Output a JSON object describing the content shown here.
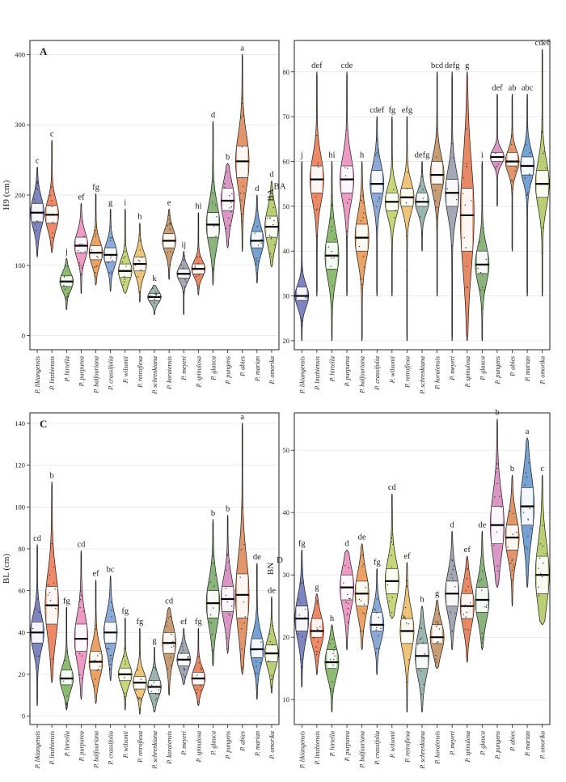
{
  "species": [
    "P. likiangensis",
    "P. linzhiensis",
    "P. hirtella",
    "P. purpurea",
    "P. balfouriana",
    "P. crassifolia",
    "P. wilsonii",
    "P. retroflexa",
    "P. schrenkiana",
    "P. koraiensis",
    "P. meyeri",
    "P. spinulosa",
    "P. glauca",
    "P. pungens",
    "P. abies",
    "P. marian",
    "P. omorika"
  ],
  "colors": [
    "#5b63ad",
    "#e8683b",
    "#6ea84a",
    "#e87fb3",
    "#e8883a",
    "#6a92cc",
    "#b7cb52",
    "#e8b452",
    "#7fa098",
    "#b8814d",
    "#8b8fa0",
    "#e0683a",
    "#6a9d58",
    "#d07ab5",
    "#d87842",
    "#4f86c6",
    "#a6c24c"
  ],
  "chart_data": [
    {
      "type": "violin",
      "panel": "A",
      "ylabel": "H9 (cm)",
      "ylim": [
        -20,
        420
      ],
      "yticks": [
        0,
        100,
        200,
        300,
        400
      ],
      "medians": [
        175,
        172,
        77,
        128,
        118,
        115,
        92,
        102,
        55,
        135,
        88,
        95,
        158,
        192,
        248,
        135,
        155
      ],
      "q1": [
        162,
        160,
        70,
        118,
        108,
        105,
        83,
        92,
        50,
        125,
        82,
        88,
        140,
        178,
        225,
        125,
        140
      ],
      "q3": [
        188,
        185,
        85,
        140,
        128,
        125,
        102,
        112,
        60,
        145,
        95,
        102,
        175,
        210,
        270,
        148,
        170
      ],
      "mins": [
        112,
        118,
        37,
        60,
        72,
        63,
        60,
        48,
        30,
        80,
        30,
        58,
        72,
        125,
        120,
        75,
        98
      ],
      "maxs": [
        240,
        278,
        110,
        188,
        202,
        180,
        180,
        160,
        72,
        180,
        120,
        175,
        305,
        245,
        400,
        200,
        220
      ],
      "letters": [
        "c",
        "c",
        "j",
        "ef",
        "fg",
        "g",
        "i",
        "h",
        "k",
        "e",
        "ij",
        "hi",
        "d",
        "b",
        "a",
        "d",
        "d"
      ]
    },
    {
      "type": "violin",
      "panel": "BA",
      "ylabel": "BA",
      "ylim": [
        18,
        87
      ],
      "yticks": [
        20,
        30,
        40,
        50,
        60,
        70,
        80
      ],
      "medians": [
        30,
        56,
        39,
        56,
        43,
        55,
        51,
        52,
        51,
        57,
        53,
        48,
        37,
        61,
        60,
        59,
        55
      ],
      "q1": [
        29,
        53,
        36,
        53,
        40,
        53,
        49,
        50,
        50,
        55,
        50,
        40,
        35,
        60,
        59,
        57,
        52
      ],
      "q3": [
        32,
        59,
        42,
        59,
        46,
        58,
        53,
        54,
        53,
        60,
        56,
        54,
        40,
        62,
        62,
        61,
        58
      ],
      "mins": [
        20,
        30,
        20,
        30,
        20,
        30,
        30,
        20,
        40,
        30,
        20,
        20,
        20,
        50,
        40,
        30,
        30
      ],
      "maxs": [
        60,
        80,
        60,
        80,
        60,
        70,
        70,
        70,
        60,
        80,
        80,
        80,
        60,
        75,
        75,
        75,
        85
      ],
      "letters": [
        "j",
        "def",
        "hi",
        "cde",
        "h",
        "cdef",
        "fg",
        "efg",
        "defg",
        "bcd",
        "defg",
        "g",
        "i",
        "def",
        "ab",
        "abc",
        "cdef"
      ]
    },
    {
      "type": "violin",
      "panel": "C",
      "ylabel": "BL (cm)",
      "ylim": [
        -4,
        145
      ],
      "yticks": [
        0,
        20,
        40,
        60,
        80,
        100,
        120,
        140
      ],
      "medians": [
        40,
        53,
        18,
        37,
        26,
        40,
        20,
        16,
        14,
        35,
        27,
        18,
        54,
        56,
        58,
        32,
        30
      ],
      "q1": [
        35,
        44,
        15,
        31,
        22,
        35,
        17,
        13,
        11,
        30,
        24,
        15,
        47,
        50,
        47,
        28,
        26
      ],
      "q3": [
        45,
        62,
        22,
        44,
        31,
        45,
        23,
        19,
        17,
        40,
        30,
        21,
        60,
        62,
        68,
        37,
        34
      ],
      "mins": [
        5,
        16,
        3,
        8,
        6,
        17,
        3,
        1,
        2,
        10,
        15,
        5,
        24,
        30,
        20,
        8,
        11
      ],
      "maxs": [
        82,
        112,
        52,
        79,
        65,
        67,
        47,
        42,
        33,
        52,
        42,
        42,
        94,
        96,
        140,
        73,
        57
      ],
      "letters": [
        "cd",
        "b",
        "fg",
        "cd",
        "ef",
        "bc",
        "fg",
        "fg",
        "g",
        "cd",
        "ef",
        "fg",
        "b",
        "b",
        "a",
        "de",
        "de"
      ]
    },
    {
      "type": "violin",
      "panel": "D",
      "ylabel": "BN",
      "ylim": [
        6,
        56
      ],
      "yticks": [
        10,
        20,
        30,
        40,
        50
      ],
      "medians": [
        23,
        21,
        16,
        28,
        27,
        22,
        29,
        21,
        17,
        20,
        27,
        25,
        26,
        38,
        36,
        41,
        30
      ],
      "q1": [
        21,
        20,
        15,
        26,
        25,
        21,
        27,
        19,
        15,
        19,
        25,
        23,
        24,
        35,
        34,
        38,
        27
      ],
      "q3": [
        25,
        23,
        18,
        30,
        29,
        24,
        31,
        23,
        19,
        22,
        29,
        27,
        28,
        41,
        38,
        44,
        33
      ],
      "mins": [
        12,
        14,
        8,
        18,
        18,
        14,
        23,
        8,
        8,
        15,
        18,
        16,
        18,
        28,
        25,
        28,
        22
      ],
      "maxs": [
        34,
        27,
        22,
        34,
        35,
        31,
        43,
        32,
        25,
        26,
        37,
        33,
        37,
        55,
        46,
        52,
        46
      ],
      "letters": [
        "fg",
        "g",
        "h",
        "d",
        "de",
        "fg",
        "cd",
        "ef",
        "h",
        "g",
        "d",
        "ef",
        "de",
        "b",
        "b",
        "a",
        "c"
      ]
    }
  ]
}
